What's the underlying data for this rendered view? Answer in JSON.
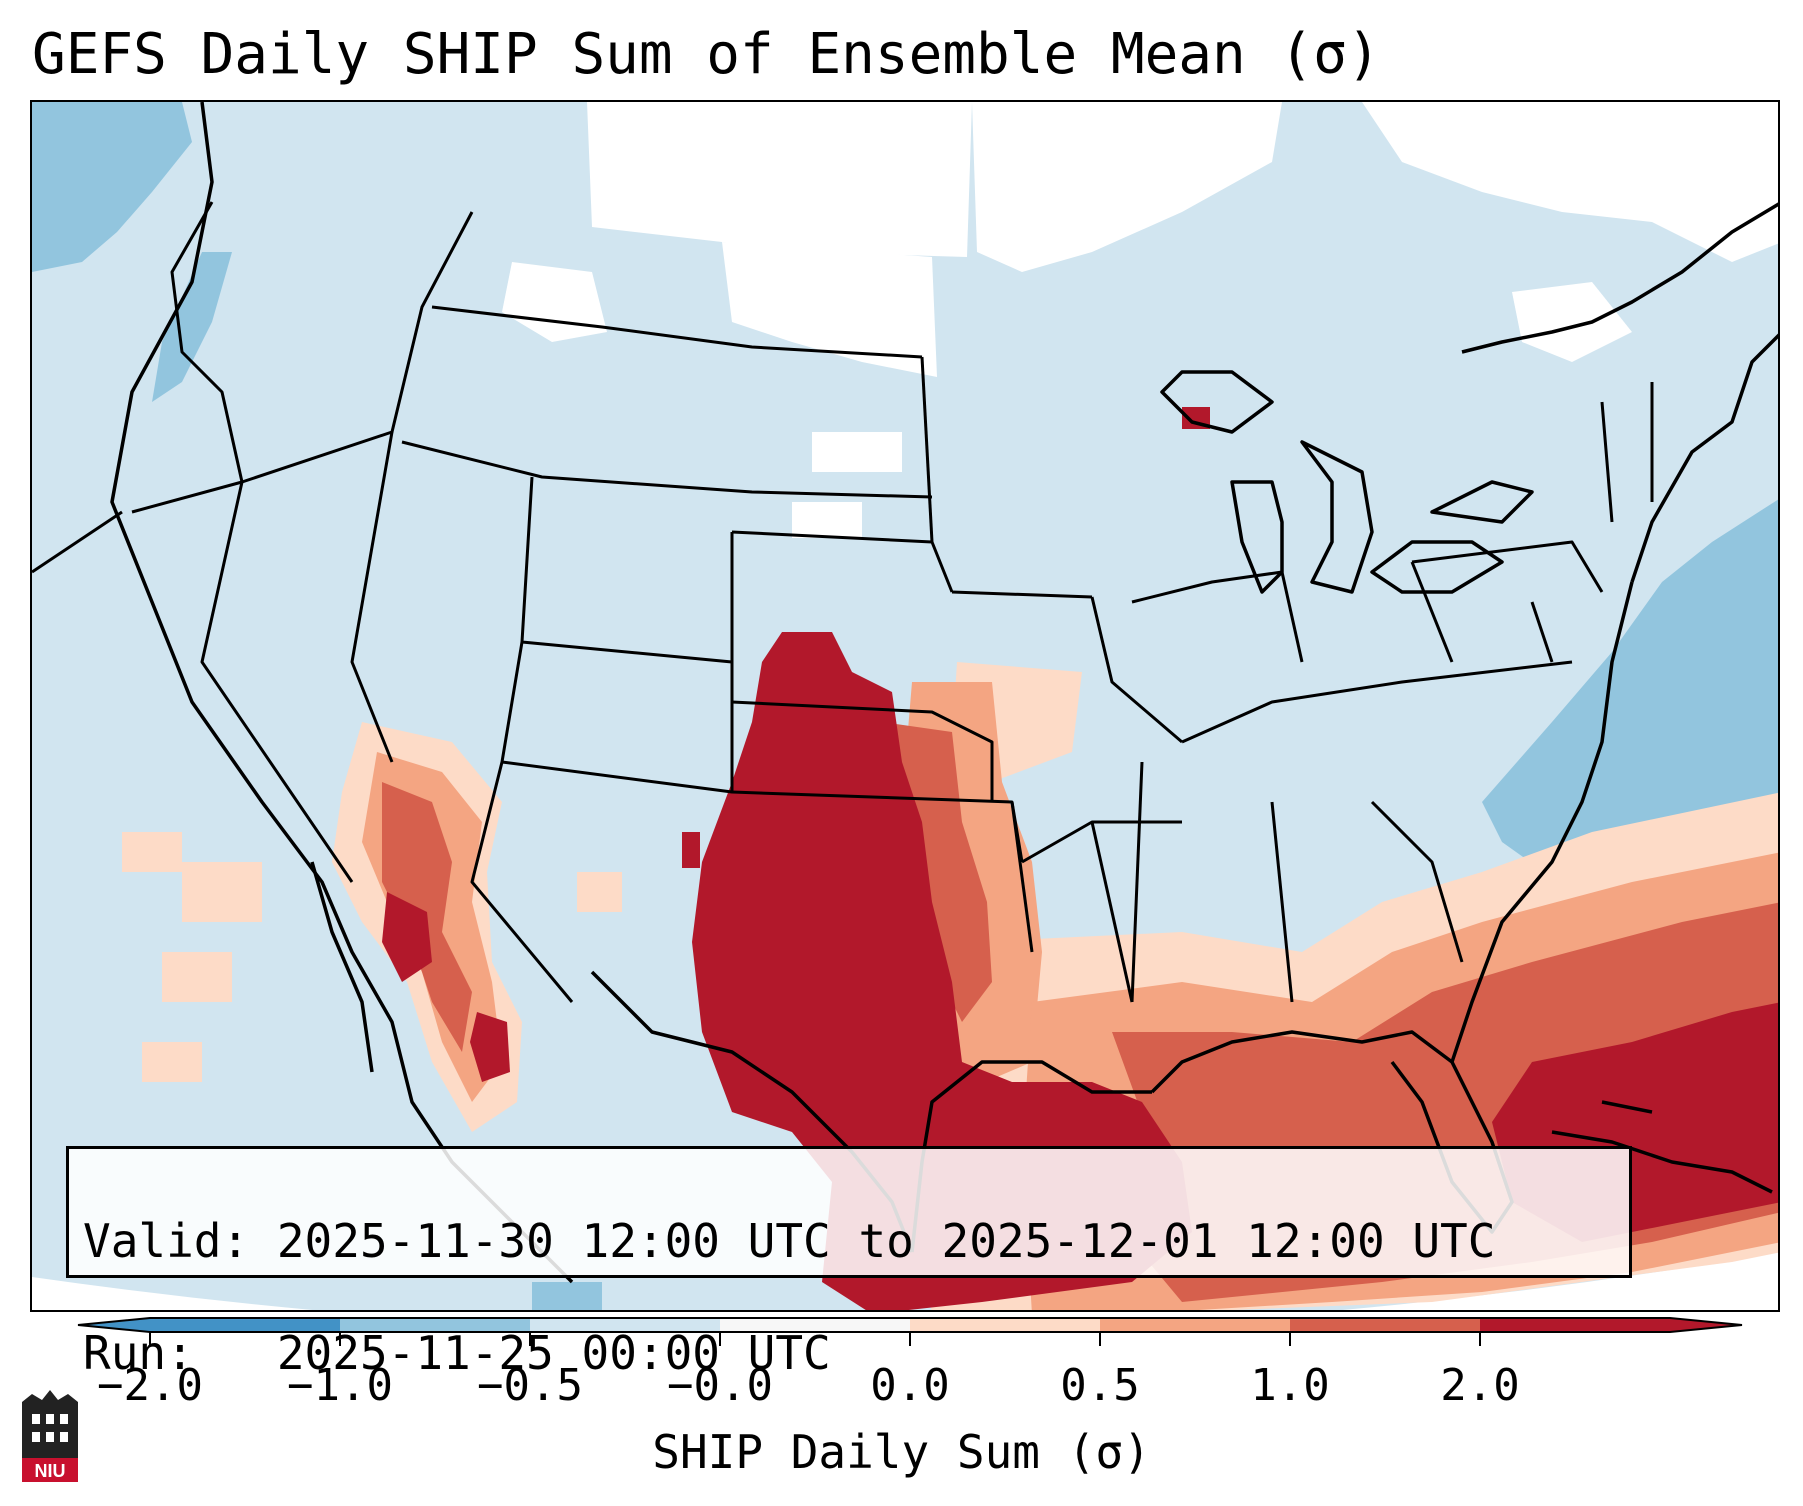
{
  "title": "GEFS Daily SHIP Sum of Ensemble Mean (σ)",
  "info": {
    "valid_line": "Valid: 2025-11-30 12:00 UTC to 2025-12-01 12:00 UTC",
    "run_line": "Run:   2025-11-25 00:00 UTC"
  },
  "colorbar": {
    "label": "SHIP Daily Sum (σ)",
    "ticks": [
      "−2.0",
      "−1.0",
      "−0.5",
      "−0.0",
      "0.0",
      "0.5",
      "1.0",
      "2.0"
    ],
    "colors": [
      "#4292c6",
      "#92c5de",
      "#d1e5f0",
      "#f7f7f7",
      "#fddbc7",
      "#f4a582",
      "#d6604d",
      "#b2182b"
    ],
    "extend": "both"
  },
  "map": {
    "region": "Contiguous United States, Mexico, Caribbean",
    "background_color": "#d1e5f0",
    "outline_color": "#000000"
  },
  "logo": {
    "text": "NIU",
    "color": "#c8102e"
  }
}
